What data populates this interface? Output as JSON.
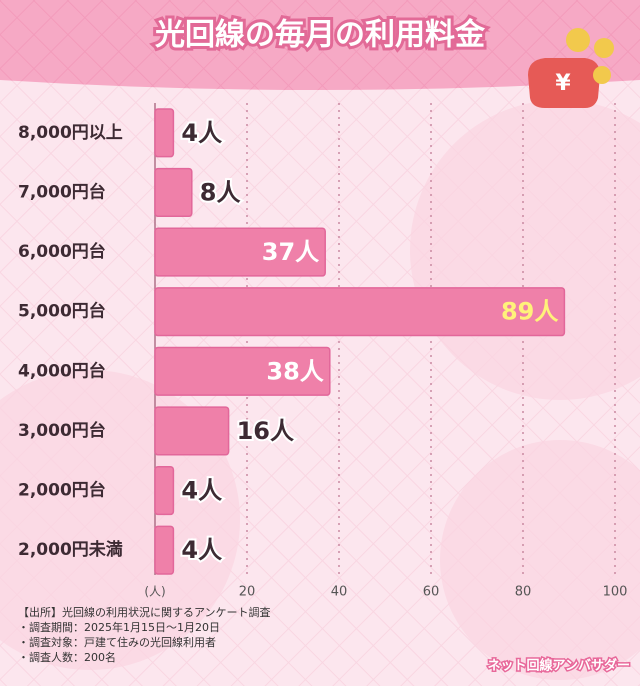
{
  "chart_data": {
    "type": "bar",
    "orientation": "horizontal",
    "title": "光回線の毎月の利用料金",
    "categories": [
      "8,000円以上",
      "7,000円台",
      "6,000円台",
      "5,000円台",
      "4,000円台",
      "3,000円台",
      "2,000円台",
      "2,000円未満"
    ],
    "values": [
      4,
      8,
      37,
      89,
      38,
      16,
      4,
      4
    ],
    "value_labels": [
      "4人",
      "8人",
      "37人",
      "89人",
      "38人",
      "16人",
      "4人",
      "4人"
    ],
    "color": "#ef80a9",
    "xlabel": "(人)",
    "xlim": [
      0,
      100
    ],
    "xticks": [
      20,
      40,
      60,
      80,
      100
    ],
    "grid": true
  },
  "notes": [
    "【出所】光回線の利用状況に関するアンケート調査",
    "・調査期間：2025年1月15日～1月20日",
    "・調査対象：戸建て住みの光回線利用者",
    "・調査人数：200名"
  ],
  "brand": "ネット回線アンバサダー"
}
